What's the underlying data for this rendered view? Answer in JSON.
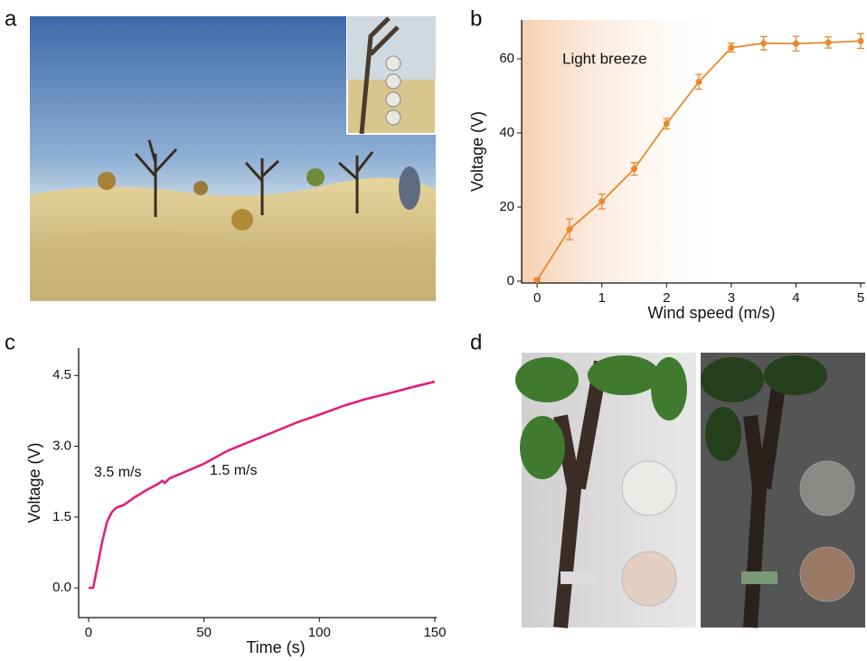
{
  "panel_labels": [
    "a",
    "b",
    "c",
    "d"
  ],
  "chart_data": [
    {
      "type": "line",
      "xlabel": "Wind speed (m/s)",
      "ylabel": "Voltage (V)",
      "annotation": "Light breeze",
      "x": [
        0,
        0.5,
        1,
        1.5,
        2,
        2.5,
        3,
        3.5,
        4,
        4.5,
        5
      ],
      "series": [
        {
          "color": "#e8892e",
          "values": [
            0.3,
            14,
            21.5,
            30.3,
            42.5,
            53.8,
            63,
            64.2,
            64.1,
            64.4,
            64.8
          ],
          "errors": [
            0.5,
            2.8,
            2,
            1.7,
            1.4,
            2,
            1.2,
            1.8,
            2,
            1.5,
            2
          ]
        }
      ],
      "xlim": [
        -0.24,
        5.07
      ],
      "xticks": [
        0,
        1,
        2,
        3,
        4,
        5
      ],
      "ylim": [
        -0.5,
        70.5
      ],
      "yticks": [
        0,
        20,
        40,
        60
      ]
    },
    {
      "type": "line",
      "xlabel": "Time (s)",
      "ylabel": "Voltage (V)",
      "annotations": [
        "3.5 m/s",
        "1.5 m/s"
      ],
      "x": [
        0,
        2,
        4,
        6,
        8,
        10,
        12,
        15,
        20,
        25,
        30,
        32,
        33,
        35,
        40,
        50,
        60,
        70,
        80,
        90,
        100,
        110,
        120,
        130,
        140,
        150
      ],
      "series": [
        {
          "color": "#e0207a",
          "values": [
            0,
            0,
            0.5,
            1.0,
            1.4,
            1.6,
            1.7,
            1.75,
            1.92,
            2.07,
            2.2,
            2.27,
            2.22,
            2.32,
            2.42,
            2.63,
            2.9,
            3.1,
            3.3,
            3.5,
            3.67,
            3.85,
            4.0,
            4.12,
            4.25,
            4.37
          ]
        }
      ],
      "xlim": [
        -4.3,
        150.8
      ],
      "xticks": [
        0,
        50,
        100,
        150
      ],
      "ylim": [
        -0.63,
        5.08
      ],
      "yticks": [
        {
          "value": 0,
          "label": "0.0"
        },
        1.5,
        {
          "value": 3,
          "label": "3.0"
        },
        4.5
      ]
    }
  ]
}
